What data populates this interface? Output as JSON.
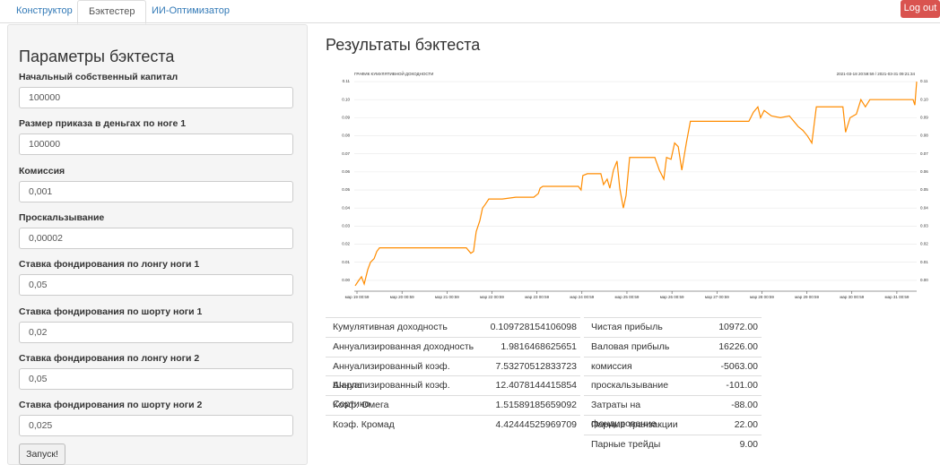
{
  "nav": {
    "tabs": [
      "Конструктор",
      "Бэктестер",
      "ИИ-Оптимизатор"
    ],
    "logout": "Log out"
  },
  "params": {
    "title": "Параметры бэктеста",
    "fields": [
      {
        "label": "Начальный собственный капитал",
        "value": "100000"
      },
      {
        "label": "Размер приказа в деньгах по ноге 1",
        "value": "100000"
      },
      {
        "label": "Комиссия",
        "value": "0,001"
      },
      {
        "label": "Проскальзывание",
        "value": "0,00002"
      },
      {
        "label": "Ставка фондирования по лонгу ноги 1",
        "value": "0,05"
      },
      {
        "label": "Ставка фондирования по шорту ноги 1",
        "value": "0,02"
      },
      {
        "label": "Ставка фондирования по лонгу ноги 2",
        "value": "0,05"
      },
      {
        "label": "Ставка фондирования по шорту ноги 2",
        "value": "0,025"
      }
    ],
    "button": "Запуск!"
  },
  "results": {
    "title": "Результаты бэктеста",
    "chart": {
      "type": "line",
      "title": "ГРАФИК КУМУЛЯТИВНОЙ ДОХОДНОСТИ",
      "subtitle": "2021-03-18 20:59:59 / 2021-03-31 09:21:34",
      "x": [
        19.0,
        19.08,
        19.14,
        19.2,
        19.28,
        19.34,
        19.42,
        19.48,
        19.54,
        19.68,
        21.47,
        21.57,
        21.63,
        21.69,
        21.77,
        21.83,
        21.89,
        21.97,
        22.27,
        22.57,
        22.97,
        23.07,
        23.11,
        23.17,
        23.96,
        24.02,
        24.06,
        24.16,
        24.46,
        24.52,
        24.6,
        24.66,
        24.74,
        24.82,
        24.88,
        24.96,
        25.02,
        25.1,
        25.66,
        25.76,
        25.86,
        25.92,
        26.02,
        26.1,
        26.18,
        26.26,
        26.36,
        26.45,
        27.75,
        27.85,
        27.95,
        28.01,
        28.09,
        28.25,
        28.45,
        28.65,
        28.85,
        28.95,
        29.05,
        29.15,
        29.25,
        29.84,
        29.9,
        30.0,
        30.14,
        30.24,
        30.34,
        30.44,
        31.4,
        31.44,
        31.48
      ],
      "series": [
        {
          "color": "#ff8c00",
          "values": [
            -0.003,
            0.0,
            0.002,
            -0.002,
            0.006,
            0.01,
            0.012,
            0.016,
            0.018,
            0.018,
            0.018,
            0.015,
            0.016,
            0.027,
            0.033,
            0.04,
            0.042,
            0.045,
            0.045,
            0.046,
            0.046,
            0.048,
            0.051,
            0.052,
            0.052,
            0.05,
            0.058,
            0.059,
            0.059,
            0.053,
            0.056,
            0.051,
            0.061,
            0.066,
            0.051,
            0.04,
            0.047,
            0.068,
            0.068,
            0.061,
            0.056,
            0.068,
            0.067,
            0.076,
            0.074,
            0.061,
            0.076,
            0.088,
            0.088,
            0.093,
            0.096,
            0.09,
            0.094,
            0.091,
            0.09,
            0.091,
            0.085,
            0.083,
            0.08,
            0.076,
            0.096,
            0.096,
            0.082,
            0.09,
            0.092,
            0.1,
            0.096,
            0.1,
            0.1,
            0.097,
            0.11
          ]
        }
      ],
      "xlim": [
        18.98,
        31.48
      ],
      "ylim": [
        -0.006,
        0.112
      ],
      "grid": true,
      "xticks": [
        {
          "value": 19.04,
          "label": "мар 19 00:59"
        },
        {
          "value": 20.04,
          "label": "мар 20 00:59"
        },
        {
          "value": 21.04,
          "label": "мар 21 00:59"
        },
        {
          "value": 22.04,
          "label": "мар 22 00:59"
        },
        {
          "value": 23.04,
          "label": "мар 23 00:59"
        },
        {
          "value": 24.04,
          "label": "мар 24 00:59"
        },
        {
          "value": 25.04,
          "label": "мар 25 00:59"
        },
        {
          "value": 26.04,
          "label": "мар 26 00:59"
        },
        {
          "value": 27.04,
          "label": "мар 27 00:59"
        },
        {
          "value": 28.04,
          "label": "мар 28 00:59"
        },
        {
          "value": 29.04,
          "label": "мар 29 00:59"
        },
        {
          "value": 30.04,
          "label": "мар 30 00:59"
        },
        {
          "value": 31.04,
          "label": "мар 31 00:59"
        }
      ],
      "yticks": [
        {
          "value": 0,
          "label": "0.00"
        },
        {
          "value": 0.01,
          "label": "0.01"
        },
        {
          "value": 0.02,
          "label": "0.02"
        },
        {
          "value": 0.03,
          "label": "0.03"
        },
        {
          "value": 0.04,
          "label": "0.04"
        },
        {
          "value": 0.05,
          "label": "0.05"
        },
        {
          "value": 0.06,
          "label": "0.06"
        },
        {
          "value": 0.07,
          "label": "0.07"
        },
        {
          "value": 0.08,
          "label": "0.08"
        },
        {
          "value": 0.09,
          "label": "0.09"
        },
        {
          "value": 0.1,
          "label": "0.10"
        },
        {
          "value": 0.11,
          "label": "0.11"
        }
      ]
    },
    "metrics_left": [
      [
        "Кумулятивная доходность",
        "0.109728154106098"
      ],
      [
        "Аннуализированная доходность",
        "1.9816468625651"
      ],
      [
        "Аннуализированный коэф. Шарпа",
        "7.53270512833723"
      ],
      [
        "Аннуализированный коэф. Сортино",
        "12.4078144415854"
      ],
      [
        "Коэф. Омега",
        "1.51589185659092"
      ],
      [
        "Коэф. Кромад",
        "4.42444525969709"
      ]
    ],
    "metrics_right": [
      [
        "Чистая прибыль",
        "10972.00"
      ],
      [
        "Валовая прибыль",
        "16226.00"
      ],
      [
        "комиссия",
        "-5063.00"
      ],
      [
        "проскальзывание",
        "-101.00"
      ],
      [
        "Затраты на фондирование",
        "-88.00"
      ],
      [
        "Парные транзакции",
        "22.00"
      ],
      [
        "Парные трейды",
        "9.00"
      ]
    ]
  }
}
